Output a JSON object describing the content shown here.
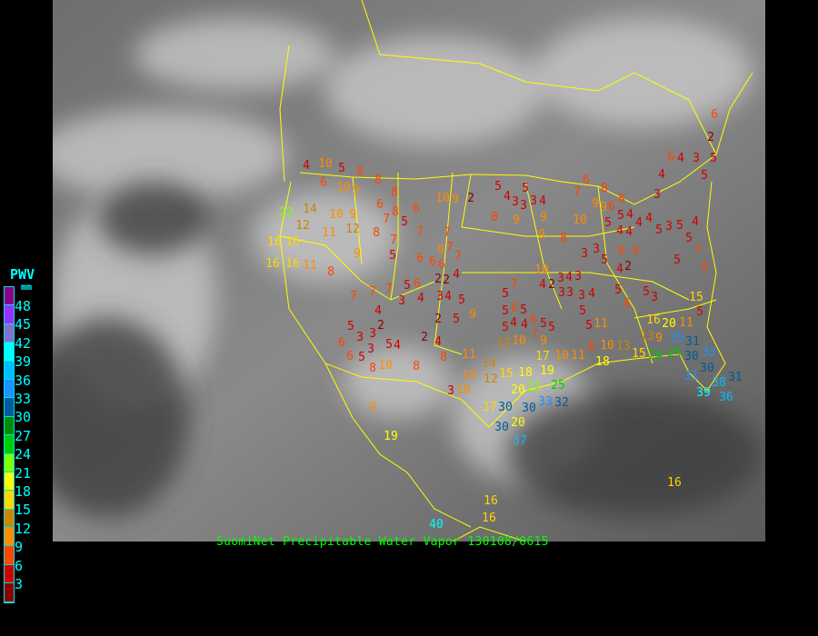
{
  "title": "SuomiNet Precipitable Water Vapor",
  "timestamp": "130108/0615",
  "legend": {
    "title": "PWV",
    "unit": "mm",
    "bins": [
      {
        "label": "48",
        "color": "#8b008b"
      },
      {
        "label": "45",
        "color": "#9b30ff"
      },
      {
        "label": "42",
        "color": "#8470d0"
      },
      {
        "label": "39",
        "color": "#00ffff"
      },
      {
        "label": "36",
        "color": "#00bfff"
      },
      {
        "label": "33",
        "color": "#1e90ff"
      },
      {
        "label": "30",
        "color": "#005a9c"
      },
      {
        "label": "27",
        "color": "#008b00"
      },
      {
        "label": "24",
        "color": "#00cd00"
      },
      {
        "label": "21",
        "color": "#7fff00"
      },
      {
        "label": "18",
        "color": "#ffff00"
      },
      {
        "label": "15",
        "color": "#ffd700"
      },
      {
        "label": "12",
        "color": "#cd8500"
      },
      {
        "label": "9",
        "color": "#ff8c00"
      },
      {
        "label": "6",
        "color": "#ff4500"
      },
      {
        "label": "3",
        "color": "#d00000"
      },
      {
        "label": "",
        "color": "#8b0000"
      }
    ]
  },
  "colors": {
    "borders": "#ffff00",
    "caption": "#00ff00",
    "legend_text": "#00ffff"
  },
  "stations": [
    4,
    10,
    5,
    8,
    6,
    10,
    9,
    8,
    6,
    8,
    14,
    10,
    9,
    7,
    8,
    6,
    5,
    10,
    9,
    2,
    11,
    12,
    8,
    7,
    7,
    7,
    7,
    22,
    16,
    16,
    12,
    16,
    16,
    11,
    8,
    9,
    5,
    6,
    6,
    6,
    9,
    7,
    2,
    2,
    4,
    5,
    6,
    3,
    4,
    3,
    4,
    5,
    7,
    7,
    7,
    4,
    2,
    5,
    3,
    3,
    3,
    5,
    4,
    2,
    2,
    4,
    5,
    9,
    6,
    5,
    6,
    8,
    10,
    8,
    8,
    9,
    19,
    3,
    10,
    11,
    10,
    12,
    14,
    15,
    18,
    19,
    22,
    20,
    25,
    33,
    32,
    30,
    30,
    20,
    17,
    30,
    37,
    16,
    16,
    40,
    5,
    5,
    4,
    3,
    3,
    3,
    4,
    8,
    9,
    9,
    9,
    8,
    6,
    7,
    8,
    9,
    9,
    6,
    8,
    5,
    4,
    5,
    4,
    4,
    4,
    4,
    10,
    3,
    3,
    5,
    4,
    2,
    6,
    6,
    5,
    3,
    5,
    5,
    4,
    5,
    7,
    6,
    4,
    3,
    6,
    4,
    3,
    5,
    5,
    2,
    6,
    10,
    7,
    5,
    4,
    2,
    3,
    3,
    3,
    4,
    3,
    3,
    4,
    5,
    5,
    5,
    3,
    6,
    5,
    11,
    16,
    20,
    11,
    13,
    9,
    8,
    10,
    13,
    15,
    10,
    11,
    18,
    24,
    25,
    30,
    31,
    35,
    33,
    30,
    33,
    38,
    31,
    39,
    36,
    16,
    15,
    5,
    5,
    6,
    5,
    4,
    4,
    5,
    6,
    5,
    5,
    7,
    10,
    9,
    12,
    17
  ]
}
